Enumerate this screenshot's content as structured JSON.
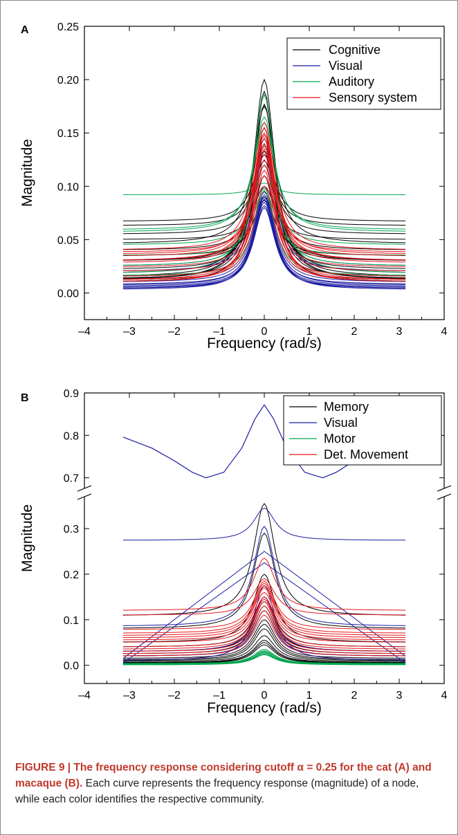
{
  "figure": {
    "caption_bold": "FIGURE 9 | The frequency response considering cutoff α = 0.25 for the cat (A) and macaque (B).",
    "caption_text": " Each curve represents the frequency response (magnitude) of a node, while each color identifies the respective community."
  },
  "colors": {
    "Cognitive": "#000000",
    "Visual": "#1a1aa0",
    "Auditory": "#00a64f",
    "Sensory system": "#e3151b",
    "Memory": "#000000",
    "Motor": "#00a64f",
    "Det. Movement": "#e3151b"
  },
  "chart_data": [
    {
      "panel": "A",
      "type": "line",
      "xlabel": "Frequency (rad/s)",
      "ylabel": "Magnitude",
      "xlim": [
        -4,
        4
      ],
      "ylim": [
        -0.025,
        0.25
      ],
      "xticks": [
        -4,
        -3,
        -2,
        -1,
        0,
        1,
        2,
        3,
        4
      ],
      "xtick_labels": [
        "–4",
        "–3",
        "–2",
        "–1",
        "0",
        "1",
        "2",
        "3",
        "4"
      ],
      "yticks": [
        0.0,
        0.05,
        0.1,
        0.15,
        0.2,
        0.25
      ],
      "ytick_labels": [
        "0.00",
        "0.05",
        "0.10",
        "0.15",
        "0.20",
        "0.25"
      ],
      "legend": [
        "Cognitive",
        "Visual",
        "Auditory",
        "Sensory system"
      ],
      "legend_position": "top-right",
      "x_range": [
        -3.14,
        3.14
      ],
      "series": [
        {
          "name": "Cognitive",
          "curves": [
            [
              0.2,
              0.012
            ],
            [
              0.189,
              0.015
            ],
            [
              0.186,
              0.012
            ],
            [
              0.177,
              0.018
            ],
            [
              0.175,
              0.046
            ],
            [
              0.155,
              0.013
            ],
            [
              0.14,
              0.022
            ],
            [
              0.133,
              0.03
            ],
            [
              0.13,
              0.067
            ],
            [
              0.124,
              0.063
            ],
            [
              0.12,
              0.04
            ],
            [
              0.145,
              0.01
            ],
            [
              0.13,
              0.055
            ],
            [
              0.11,
              0.03
            ],
            [
              0.1,
              0.05
            ],
            [
              0.09,
              0.035
            ]
          ]
        },
        {
          "name": "Visual",
          "curves": [
            [
              0.08,
              0.004
            ],
            [
              0.082,
              0.005
            ],
            [
              0.085,
              0.006
            ],
            [
              0.087,
              0.008
            ],
            [
              0.09,
              0.004
            ],
            [
              0.092,
              0.007
            ],
            [
              0.095,
              0.01
            ],
            [
              0.1,
              0.012
            ],
            [
              0.088,
              0.003
            ],
            [
              0.13,
              0.02
            ],
            [
              0.14,
              0.025
            ],
            [
              0.11,
              0.015
            ]
          ]
        },
        {
          "name": "Auditory",
          "curves": [
            [
              0.103,
              0.092
            ],
            [
              0.186,
              0.018
            ],
            [
              0.1,
              0.012
            ],
            [
              0.098,
              0.035
            ],
            [
              0.16,
              0.059
            ],
            [
              0.165,
              0.057
            ],
            [
              0.12,
              0.045
            ],
            [
              0.14,
              0.025
            ],
            [
              0.096,
              0.016
            ]
          ]
        },
        {
          "name": "Sensory system",
          "curves": [
            [
              0.15,
              0.036
            ],
            [
              0.148,
              0.034
            ],
            [
              0.145,
              0.03
            ],
            [
              0.14,
              0.028
            ],
            [
              0.138,
              0.01
            ],
            [
              0.135,
              0.012
            ],
            [
              0.13,
              0.038
            ],
            [
              0.12,
              0.024
            ],
            [
              0.115,
              0.02
            ],
            [
              0.11,
              0.015
            ],
            [
              0.16,
              0.04
            ],
            [
              0.155,
              0.03
            ],
            [
              0.125,
              0.01
            ],
            [
              0.1,
              0.012
            ]
          ]
        }
      ]
    },
    {
      "panel": "B",
      "type": "line",
      "xlabel": "Frequency (rad/s)",
      "ylabel": "Magnitude",
      "xlim": [
        -4,
        4
      ],
      "y_axis_break": true,
      "ylim_lower": [
        -0.04,
        0.37
      ],
      "ylim_upper": [
        0.675,
        0.9
      ],
      "xticks": [
        -4,
        -3,
        -2,
        -1,
        0,
        1,
        2,
        3,
        4
      ],
      "xtick_labels": [
        "–4",
        "–3",
        "–2",
        "–1",
        "0",
        "1",
        "2",
        "3",
        "4"
      ],
      "yticks_upper": [
        0.7,
        0.8,
        0.9
      ],
      "ytick_labels_upper": [
        "0.7",
        "0.8",
        "0.9"
      ],
      "yticks_lower": [
        0.0,
        0.1,
        0.2,
        0.3
      ],
      "ytick_labels_lower": [
        "0.0",
        "0.1",
        "0.2",
        "0.3"
      ],
      "legend": [
        "Memory",
        "Visual",
        "Motor",
        "Det. Movement"
      ],
      "legend_position": "top-right",
      "x_range": [
        -3.14,
        3.14
      ],
      "series": [
        {
          "name": "Memory",
          "curves": [
            [
              0.355,
              0.108
            ],
            [
              0.29,
              0.08
            ],
            [
              0.2,
              0.05
            ],
            [
              0.15,
              0.04
            ],
            [
              0.14,
              0.03
            ],
            [
              0.13,
              0.025
            ],
            [
              0.12,
              0.02
            ],
            [
              0.1,
              0.015
            ],
            [
              0.09,
              0.012
            ],
            [
              0.08,
              0.01
            ],
            [
              0.065,
              0.008
            ],
            [
              0.055,
              0.006
            ],
            [
              0.05,
              0.005
            ],
            [
              0.045,
              0.004
            ]
          ]
        },
        {
          "name": "Visual",
          "upper_curve": {
            "x": [
              -3.14,
              -2.5,
              -2.0,
              -1.6,
              -1.3,
              -0.9,
              -0.5,
              -0.2,
              0.0,
              0.2,
              0.5,
              0.9,
              1.3,
              1.6,
              2.0,
              2.5,
              3.14
            ],
            "y": [
              0.796,
              0.77,
              0.74,
              0.713,
              0.7,
              0.713,
              0.77,
              0.84,
              0.872,
              0.84,
              0.77,
              0.713,
              0.7,
              0.713,
              0.74,
              0.77,
              0.796
            ]
          },
          "curves": [
            [
              0.345,
              0.274
            ],
            [
              0.305,
              0.085
            ],
            [
              0.175,
              0.01
            ],
            [
              0.15,
              0.03
            ],
            [
              0.12,
              0.02
            ]
          ],
          "cross_lines": [
            {
              "x": [
                -3.14,
                0.0,
                3.14
              ],
              "y": [
                0.005,
                0.225,
                0.005
              ]
            },
            {
              "x": [
                -3.14,
                0.0,
                3.14
              ],
              "y": [
                0.015,
                0.25,
                0.02
              ]
            }
          ]
        },
        {
          "name": "Motor",
          "curves": [
            [
              0.035,
              0.003
            ],
            [
              0.032,
              0.002
            ],
            [
              0.03,
              0.004
            ],
            [
              0.028,
              0.001
            ],
            [
              0.027,
              0.003
            ],
            [
              0.025,
              0.002
            ],
            [
              0.023,
              0.001
            ]
          ]
        },
        {
          "name": "Det. Movement",
          "curves": [
            [
              0.235,
              0.12
            ],
            [
              0.19,
              0.11
            ],
            [
              0.185,
              0.078
            ],
            [
              0.18,
              0.07
            ],
            [
              0.175,
              0.065
            ],
            [
              0.17,
              0.06
            ],
            [
              0.16,
              0.055
            ],
            [
              0.15,
              0.05
            ],
            [
              0.145,
              0.04
            ],
            [
              0.14,
              0.035
            ],
            [
              0.13,
              0.03
            ],
            [
              0.12,
              0.025
            ],
            [
              0.11,
              0.02
            ]
          ]
        }
      ]
    }
  ]
}
